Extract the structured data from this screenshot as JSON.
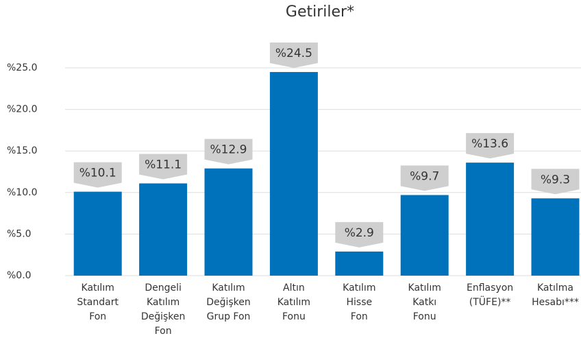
{
  "chart_data": {
    "type": "bar",
    "title": "Getiriler*",
    "categories": [
      "Katılım\nStandart\nFon",
      "Dengeli\nKatılım\nDeğişken\nFon",
      "Katılım\nDeğişken\nGrup Fon",
      "Altın\nKatılım\nFonu",
      "Katılım\nHisse\nFon",
      "Katılım\nKatkı\nFonu",
      "Enflasyon\n(TÜFE)**",
      "Katılma\nHesabı***"
    ],
    "values": [
      10.1,
      11.1,
      12.9,
      24.5,
      2.9,
      9.7,
      13.6,
      9.3
    ],
    "value_labels": [
      "%10.1",
      "%11.1",
      "%12.9",
      "%24.5",
      "%2.9",
      "%9.7",
      "%13.6",
      "%9.3"
    ],
    "color": "#0072bc",
    "ylim": [
      0,
      25
    ],
    "yticks": [
      {
        "value": 0,
        "label": "%0.0"
      },
      {
        "value": 5,
        "label": "%5.0"
      },
      {
        "value": 10,
        "label": "%10.0"
      },
      {
        "value": 15,
        "label": "%15.0"
      },
      {
        "value": 20,
        "label": "%20.0"
      },
      {
        "value": 25,
        "label": "%25.0"
      }
    ],
    "grid": true
  }
}
